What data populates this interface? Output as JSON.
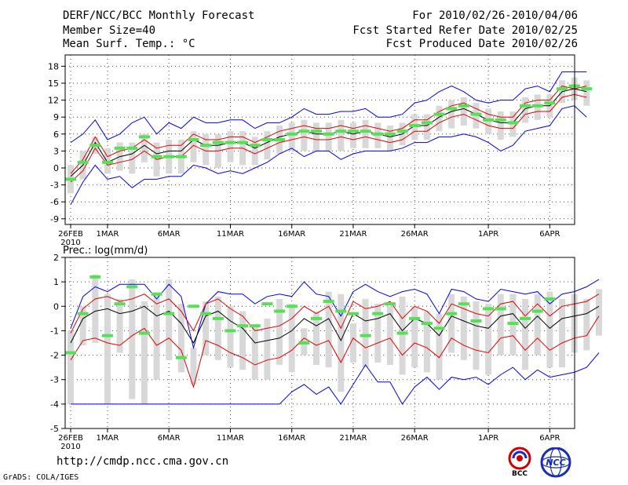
{
  "header": {
    "title": "DERF/NCC/BCC Monthly Forecast",
    "member_size": "Member Size=40",
    "temp_label": "Mean Surf. Temp.: °C",
    "period": "For 2010/02/26-2010/04/06",
    "started": "Fcst Started Refer Date 2010/02/25",
    "produced": "Fcst Produced Date 2010/02/26"
  },
  "footer": {
    "url": "http://cmdp.ncc.cma.gov.cn",
    "credit": "GrADS: COLA/IGES",
    "logo_bcc": "BCC",
    "logo_ncc": "NCC"
  },
  "colors": {
    "box": "#d8d8d8",
    "mean": "#000000",
    "spread": "#e00000",
    "envelope": "#0000e6",
    "obs": "#55e055"
  },
  "chart_data": [
    {
      "type": "line",
      "title": "Mean Surf. Temp.: °C",
      "ylim": [
        -10,
        20
      ],
      "yticks": [
        -9,
        -6,
        -3,
        0,
        3,
        6,
        9,
        12,
        15,
        18
      ],
      "xtick_days": [
        0,
        3,
        8,
        13,
        18,
        23,
        28,
        34,
        39
      ],
      "xtick_labels": [
        "26FEB",
        "1MAR",
        "6MAR",
        "11MAR",
        "16MAR",
        "21MAR",
        "26MAR",
        "1APR",
        "6APR"
      ],
      "first_tick_year": "2010",
      "grid": true,
      "series": [
        {
          "name": "mean",
          "values": [
            -1.5,
            0.5,
            4.5,
            1.0,
            2.0,
            2.5,
            4.0,
            2.5,
            3.0,
            3.0,
            5.0,
            4.0,
            4.0,
            4.5,
            4.5,
            3.5,
            4.5,
            5.5,
            6.0,
            6.5,
            6.0,
            6.0,
            6.5,
            6.0,
            6.5,
            6.0,
            5.5,
            6.0,
            7.5,
            7.5,
            9.0,
            10.0,
            10.5,
            9.5,
            8.5,
            8.0,
            8.0,
            10.5,
            11.0,
            11.0,
            13.5,
            14.0,
            13.5
          ]
        },
        {
          "name": "upper",
          "values": [
            -1.0,
            1.5,
            5.5,
            2.0,
            3.0,
            3.5,
            5.0,
            3.5,
            4.0,
            4.0,
            6.0,
            5.0,
            5.0,
            5.5,
            5.5,
            4.5,
            5.5,
            6.5,
            7.0,
            7.5,
            7.0,
            7.0,
            7.5,
            7.0,
            7.5,
            7.0,
            6.5,
            7.0,
            8.5,
            8.5,
            10.0,
            11.0,
            11.5,
            10.5,
            9.5,
            9.0,
            9.0,
            11.5,
            12.0,
            12.0,
            14.5,
            14.0,
            14.5
          ]
        },
        {
          "name": "lower",
          "values": [
            -2.5,
            -0.5,
            3.5,
            0.5,
            1.0,
            1.5,
            3.0,
            1.5,
            2.0,
            2.0,
            4.0,
            3.0,
            3.0,
            3.5,
            3.5,
            2.5,
            3.5,
            4.5,
            5.0,
            5.5,
            5.0,
            5.0,
            5.5,
            5.0,
            5.5,
            5.0,
            4.5,
            5.0,
            6.5,
            6.5,
            8.0,
            9.0,
            9.5,
            8.5,
            7.5,
            7.0,
            7.0,
            9.5,
            10.0,
            10.0,
            12.5,
            13.0,
            12.5
          ]
        },
        {
          "name": "max",
          "values": [
            4.5,
            6.0,
            8.5,
            5.0,
            6.0,
            8.0,
            9.0,
            6.0,
            8.0,
            7.0,
            9.0,
            8.0,
            8.0,
            8.5,
            8.5,
            7.0,
            8.0,
            8.0,
            9.0,
            10.5,
            9.5,
            9.5,
            10.0,
            10.0,
            10.5,
            9.0,
            9.0,
            9.5,
            11.5,
            12.0,
            13.5,
            14.5,
            13.5,
            12.0,
            11.5,
            12.0,
            12.0,
            14.0,
            14.5,
            13.5,
            17.0,
            17.0,
            17.0
          ]
        },
        {
          "name": "min",
          "values": [
            -6.5,
            -2.5,
            0.5,
            -2.0,
            -1.5,
            -3.5,
            -2.0,
            -2.0,
            -1.5,
            -1.5,
            0.5,
            0.0,
            -1.0,
            -0.5,
            -1.0,
            0.0,
            1.0,
            2.5,
            3.5,
            2.0,
            3.0,
            3.0,
            1.5,
            2.5,
            3.0,
            3.0,
            3.0,
            3.5,
            4.5,
            4.5,
            5.5,
            5.5,
            6.0,
            5.5,
            4.5,
            3.0,
            4.0,
            6.5,
            7.0,
            7.5,
            10.5,
            11.0,
            9.0
          ]
        },
        {
          "name": "obs",
          "values": [
            -2.0,
            1.0,
            4.0,
            1.0,
            3.5,
            3.5,
            5.5,
            2.0,
            2.0,
            2.0,
            5.0,
            4.0,
            4.5,
            4.5,
            4.5,
            4.0,
            5.0,
            5.0,
            6.0,
            6.5,
            6.5,
            6.0,
            6.5,
            6.5,
            6.5,
            6.0,
            6.0,
            6.5,
            7.5,
            8.0,
            9.5,
            10.5,
            11.0,
            9.5,
            8.5,
            8.5,
            8.0,
            11.0,
            11.0,
            11.5,
            14.0,
            14.5,
            14.0
          ]
        },
        {
          "name": "box_high",
          "values": [
            0.5,
            3.0,
            5.5,
            3.5,
            4.5,
            4.5,
            6.0,
            4.5,
            5.0,
            5.0,
            6.5,
            6.0,
            6.0,
            6.5,
            6.5,
            5.5,
            6.5,
            7.5,
            8.0,
            8.5,
            8.0,
            8.0,
            8.5,
            8.0,
            8.5,
            8.0,
            7.5,
            8.0,
            9.5,
            9.5,
            11.0,
            12.0,
            12.5,
            11.5,
            10.5,
            10.0,
            10.0,
            12.5,
            13.0,
            13.0,
            15.5,
            16.0,
            15.5
          ]
        },
        {
          "name": "box_low",
          "values": [
            -4.5,
            -2.0,
            2.5,
            -1.0,
            -0.5,
            -1.0,
            1.0,
            -1.5,
            -1.0,
            -1.0,
            1.0,
            0.5,
            0.0,
            1.0,
            0.5,
            0.5,
            1.5,
            2.5,
            3.0,
            3.0,
            3.0,
            3.0,
            3.0,
            3.5,
            3.5,
            3.5,
            3.0,
            4.0,
            5.0,
            5.0,
            6.5,
            7.0,
            7.5,
            7.0,
            6.0,
            5.0,
            5.5,
            8.0,
            8.5,
            9.0,
            11.5,
            12.0,
            11.0
          ]
        }
      ]
    },
    {
      "type": "line",
      "title": "Prec.: log(mm/d)",
      "ylim": [
        -5,
        2
      ],
      "yticks": [
        -5,
        -4,
        -3,
        -2,
        -1,
        0,
        1,
        2
      ],
      "xtick_days": [
        0,
        3,
        8,
        13,
        18,
        23,
        28,
        34,
        39
      ],
      "xtick_labels": [
        "26FEB",
        "1MAR",
        "6MAR",
        "11MAR",
        "16MAR",
        "21MAR",
        "26MAR",
        "1APR",
        "6APR"
      ],
      "first_tick_year": "2010",
      "grid": true,
      "series": [
        {
          "name": "mean",
          "values": [
            -1.5,
            -0.5,
            -0.2,
            -0.1,
            -0.3,
            -0.2,
            0.0,
            -0.4,
            -0.2,
            -0.7,
            -1.5,
            -0.4,
            -0.2,
            -0.6,
            -0.9,
            -1.5,
            -1.4,
            -1.3,
            -1.0,
            -0.5,
            -0.8,
            -0.5,
            -1.4,
            -0.3,
            -0.6,
            -0.5,
            -0.3,
            -1.0,
            -0.5,
            -0.7,
            -1.2,
            -0.4,
            -0.6,
            -0.8,
            -0.9,
            -0.4,
            -0.3,
            -0.9,
            -0.4,
            -0.9,
            -0.5,
            -0.4,
            -0.3,
            0.0
          ]
        },
        {
          "name": "upper",
          "values": [
            -1.1,
            -0.1,
            0.3,
            0.4,
            0.2,
            0.3,
            0.5,
            0.1,
            0.3,
            -0.2,
            -1.0,
            0.1,
            0.3,
            -0.1,
            -0.4,
            -1.0,
            -0.9,
            -0.8,
            -0.5,
            0.0,
            -0.3,
            0.0,
            -0.9,
            0.2,
            -0.1,
            0.0,
            0.2,
            -0.5,
            0.0,
            -0.2,
            -0.7,
            0.1,
            -0.1,
            -0.3,
            -0.4,
            0.1,
            0.2,
            -0.4,
            0.1,
            -0.4,
            0.0,
            0.1,
            0.2,
            0.5
          ]
        },
        {
          "name": "lower",
          "values": [
            -2.2,
            -1.4,
            -1.3,
            -1.5,
            -1.6,
            -1.2,
            -0.9,
            -1.6,
            -1.3,
            -1.8,
            -3.3,
            -1.4,
            -1.6,
            -1.9,
            -2.1,
            -2.4,
            -2.2,
            -2.1,
            -1.8,
            -1.3,
            -1.6,
            -1.4,
            -2.3,
            -1.3,
            -1.7,
            -1.5,
            -1.3,
            -2.0,
            -1.5,
            -1.7,
            -2.1,
            -1.3,
            -1.6,
            -1.8,
            -1.9,
            -1.3,
            -1.2,
            -1.8,
            -1.3,
            -1.8,
            -1.5,
            -1.3,
            -1.2,
            -0.4
          ]
        },
        {
          "name": "max",
          "values": [
            -0.9,
            0.4,
            0.8,
            0.6,
            0.9,
            0.9,
            0.9,
            0.3,
            0.9,
            0.4,
            -1.7,
            0.1,
            0.6,
            0.5,
            0.5,
            0.1,
            0.4,
            0.5,
            0.4,
            1.0,
            0.5,
            0.4,
            -0.4,
            0.6,
            0.9,
            0.6,
            0.4,
            0.6,
            0.7,
            0.5,
            -0.3,
            0.7,
            0.6,
            0.3,
            0.2,
            0.7,
            0.6,
            0.5,
            0.6,
            0.1,
            0.5,
            0.6,
            0.8,
            1.1
          ]
        },
        {
          "name": "min",
          "values": [
            -4.0,
            -4.0,
            -4.0,
            -4.0,
            -4.0,
            -4.0,
            -4.0,
            -4.0,
            -4.0,
            -4.0,
            -4.0,
            -4.0,
            -4.0,
            -4.0,
            -4.0,
            -4.0,
            -4.0,
            -4.0,
            -3.5,
            -3.2,
            -3.6,
            -3.3,
            -4.0,
            -3.2,
            -2.4,
            -3.1,
            -3.1,
            -4.0,
            -3.3,
            -2.9,
            -3.4,
            -2.9,
            -3.0,
            -2.9,
            -3.2,
            -2.8,
            -2.5,
            -3.0,
            -2.6,
            -2.9,
            -2.8,
            -2.7,
            -2.5,
            -1.9
          ]
        },
        {
          "name": "obs",
          "values": [
            -1.9,
            -0.3,
            1.2,
            -1.2,
            0.1,
            0.8,
            -1.1,
            0.5,
            -0.3,
            -2.1,
            0.0,
            -0.3,
            -0.5,
            -1.0,
            -0.8,
            -0.8,
            0.1,
            -0.2,
            0.0,
            -1.5,
            -0.5,
            0.2,
            -0.2,
            -0.3,
            -1.2,
            -0.3,
            0.1,
            -1.1,
            -0.5,
            -0.7,
            -0.9,
            -0.3,
            0.1,
            -0.6,
            -0.1,
            -0.1,
            -0.7,
            -0.5,
            -0.2,
            0.3
          ]
        },
        {
          "name": "box_high",
          "values": [
            -1.0,
            0.0,
            1.3,
            0.5,
            0.3,
            1.1,
            0.2,
            0.5,
            1.1,
            0.1,
            -1.7,
            0.2,
            0.4,
            0.0,
            -0.2,
            -0.8,
            -0.5,
            0.3,
            0.1,
            -0.9,
            -0.2,
            0.6,
            0.5,
            -0.7,
            0.3,
            0.1,
            0.0,
            0.4,
            0.0,
            -0.2,
            -0.3,
            0.5,
            0.4,
            0.2,
            0.1,
            0.5,
            0.5,
            0.3,
            0.5,
            0.6,
            0.3,
            0.5,
            0.3,
            0.7
          ]
        },
        {
          "name": "box_low",
          "values": [
            -4.0,
            -1.6,
            -1.5,
            -4.0,
            -1.9,
            -3.8,
            -4.0,
            -3.0,
            -2.2,
            -2.7,
            -3.2,
            -2.0,
            -2.2,
            -2.5,
            -2.6,
            -3.0,
            -3.0,
            -2.4,
            -2.7,
            -2.0,
            -2.4,
            -2.5,
            -3.5,
            -2.3,
            -2.5,
            -2.3,
            -2.4,
            -2.8,
            -2.5,
            -2.7,
            -3.0,
            -1.9,
            -2.2,
            -2.6,
            -2.8,
            -2.0,
            -2.0,
            -2.6,
            -2.0,
            -2.5,
            -2.5,
            -1.9,
            -1.8,
            -1.2
          ]
        }
      ]
    }
  ]
}
